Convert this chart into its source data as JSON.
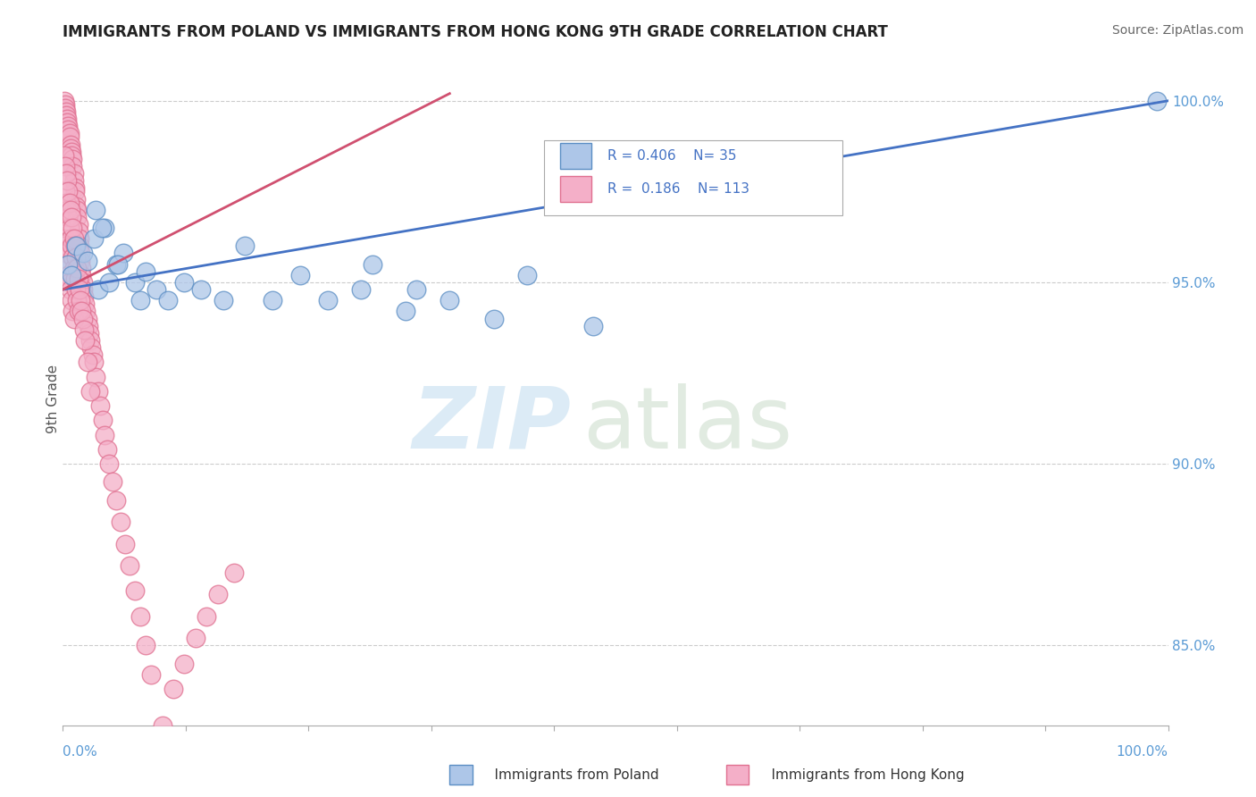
{
  "title": "IMMIGRANTS FROM POLAND VS IMMIGRANTS FROM HONG KONG 9TH GRADE CORRELATION CHART",
  "source": "Source: ZipAtlas.com",
  "ylabel": "9th Grade",
  "poland_color": "#adc6e8",
  "poland_edge_color": "#5b8ec4",
  "hk_color": "#f4afc8",
  "hk_edge_color": "#e07090",
  "poland_line_color": "#4472c4",
  "hk_line_color": "#d05070",
  "grid_color": "#cccccc",
  "ytick_color": "#5b9bd5",
  "xtick_color": "#5b9bd5",
  "title_color": "#222222",
  "source_color": "#666666",
  "ylabel_color": "#555555",
  "watermark_zip_color": "#c5dff0",
  "watermark_atlas_color": "#c5d8c5",
  "legend_border_color": "#aaaaaa",
  "legend_text_color": "#4472c4",
  "bottom_legend_text_color": "#333333",
  "ylim_min": 0.828,
  "ylim_max": 1.008,
  "xlim_min": 0.0,
  "xlim_max": 1.0,
  "ytick_vals": [
    0.85,
    0.9,
    0.95,
    1.0
  ],
  "ytick_labels": [
    "85.0%",
    "90.0%",
    "95.0%",
    "100.0%"
  ],
  "poland_scatter_x": [
    0.005,
    0.008,
    0.012,
    0.018,
    0.022,
    0.028,
    0.032,
    0.038,
    0.042,
    0.048,
    0.055,
    0.065,
    0.075,
    0.085,
    0.095,
    0.11,
    0.125,
    0.145,
    0.165,
    0.19,
    0.215,
    0.24,
    0.27,
    0.31,
    0.35,
    0.39,
    0.28,
    0.32,
    0.42,
    0.48,
    0.035,
    0.05,
    0.07,
    0.03,
    0.99
  ],
  "poland_scatter_y": [
    0.955,
    0.952,
    0.96,
    0.958,
    0.956,
    0.962,
    0.948,
    0.965,
    0.95,
    0.955,
    0.958,
    0.95,
    0.953,
    0.948,
    0.945,
    0.95,
    0.948,
    0.945,
    0.96,
    0.945,
    0.952,
    0.945,
    0.948,
    0.942,
    0.945,
    0.94,
    0.955,
    0.948,
    0.952,
    0.938,
    0.965,
    0.955,
    0.945,
    0.97,
    1.0
  ],
  "hk_scatter_x": [
    0.001,
    0.002,
    0.002,
    0.003,
    0.003,
    0.004,
    0.004,
    0.005,
    0.005,
    0.006,
    0.006,
    0.007,
    0.007,
    0.008,
    0.008,
    0.009,
    0.009,
    0.01,
    0.01,
    0.011,
    0.011,
    0.012,
    0.012,
    0.013,
    0.013,
    0.014,
    0.014,
    0.015,
    0.015,
    0.016,
    0.016,
    0.017,
    0.017,
    0.018,
    0.018,
    0.019,
    0.02,
    0.021,
    0.022,
    0.023,
    0.024,
    0.025,
    0.026,
    0.027,
    0.028,
    0.03,
    0.032,
    0.034,
    0.036,
    0.038,
    0.04,
    0.042,
    0.045,
    0.048,
    0.052,
    0.056,
    0.06,
    0.065,
    0.07,
    0.075,
    0.08,
    0.09,
    0.1,
    0.11,
    0.12,
    0.13,
    0.14,
    0.155,
    0.001,
    0.002,
    0.003,
    0.004,
    0.005,
    0.006,
    0.007,
    0.008,
    0.009,
    0.01,
    0.002,
    0.003,
    0.004,
    0.005,
    0.006,
    0.007,
    0.008,
    0.009,
    0.01,
    0.011,
    0.012,
    0.013,
    0.014,
    0.001,
    0.002,
    0.003,
    0.004,
    0.005,
    0.006,
    0.007,
    0.008,
    0.009,
    0.01,
    0.011,
    0.012,
    0.013,
    0.014,
    0.015,
    0.016,
    0.017,
    0.018,
    0.019,
    0.02,
    0.022,
    0.025
  ],
  "hk_scatter_y": [
    1.0,
    0.999,
    0.998,
    0.997,
    0.996,
    0.995,
    0.994,
    0.993,
    0.992,
    0.991,
    0.99,
    0.988,
    0.987,
    0.986,
    0.985,
    0.984,
    0.982,
    0.98,
    0.978,
    0.976,
    0.975,
    0.973,
    0.971,
    0.97,
    0.968,
    0.966,
    0.964,
    0.962,
    0.96,
    0.958,
    0.956,
    0.954,
    0.952,
    0.95,
    0.948,
    0.946,
    0.944,
    0.942,
    0.94,
    0.938,
    0.936,
    0.934,
    0.932,
    0.93,
    0.928,
    0.924,
    0.92,
    0.916,
    0.912,
    0.908,
    0.904,
    0.9,
    0.895,
    0.89,
    0.884,
    0.878,
    0.872,
    0.865,
    0.858,
    0.85,
    0.842,
    0.828,
    0.838,
    0.845,
    0.852,
    0.858,
    0.864,
    0.87,
    0.962,
    0.96,
    0.958,
    0.955,
    0.952,
    0.95,
    0.948,
    0.945,
    0.942,
    0.94,
    0.975,
    0.972,
    0.97,
    0.968,
    0.965,
    0.962,
    0.96,
    0.957,
    0.954,
    0.951,
    0.948,
    0.945,
    0.942,
    0.985,
    0.982,
    0.98,
    0.978,
    0.975,
    0.972,
    0.97,
    0.968,
    0.965,
    0.962,
    0.96,
    0.957,
    0.954,
    0.951,
    0.948,
    0.945,
    0.942,
    0.94,
    0.937,
    0.934,
    0.928,
    0.92
  ]
}
